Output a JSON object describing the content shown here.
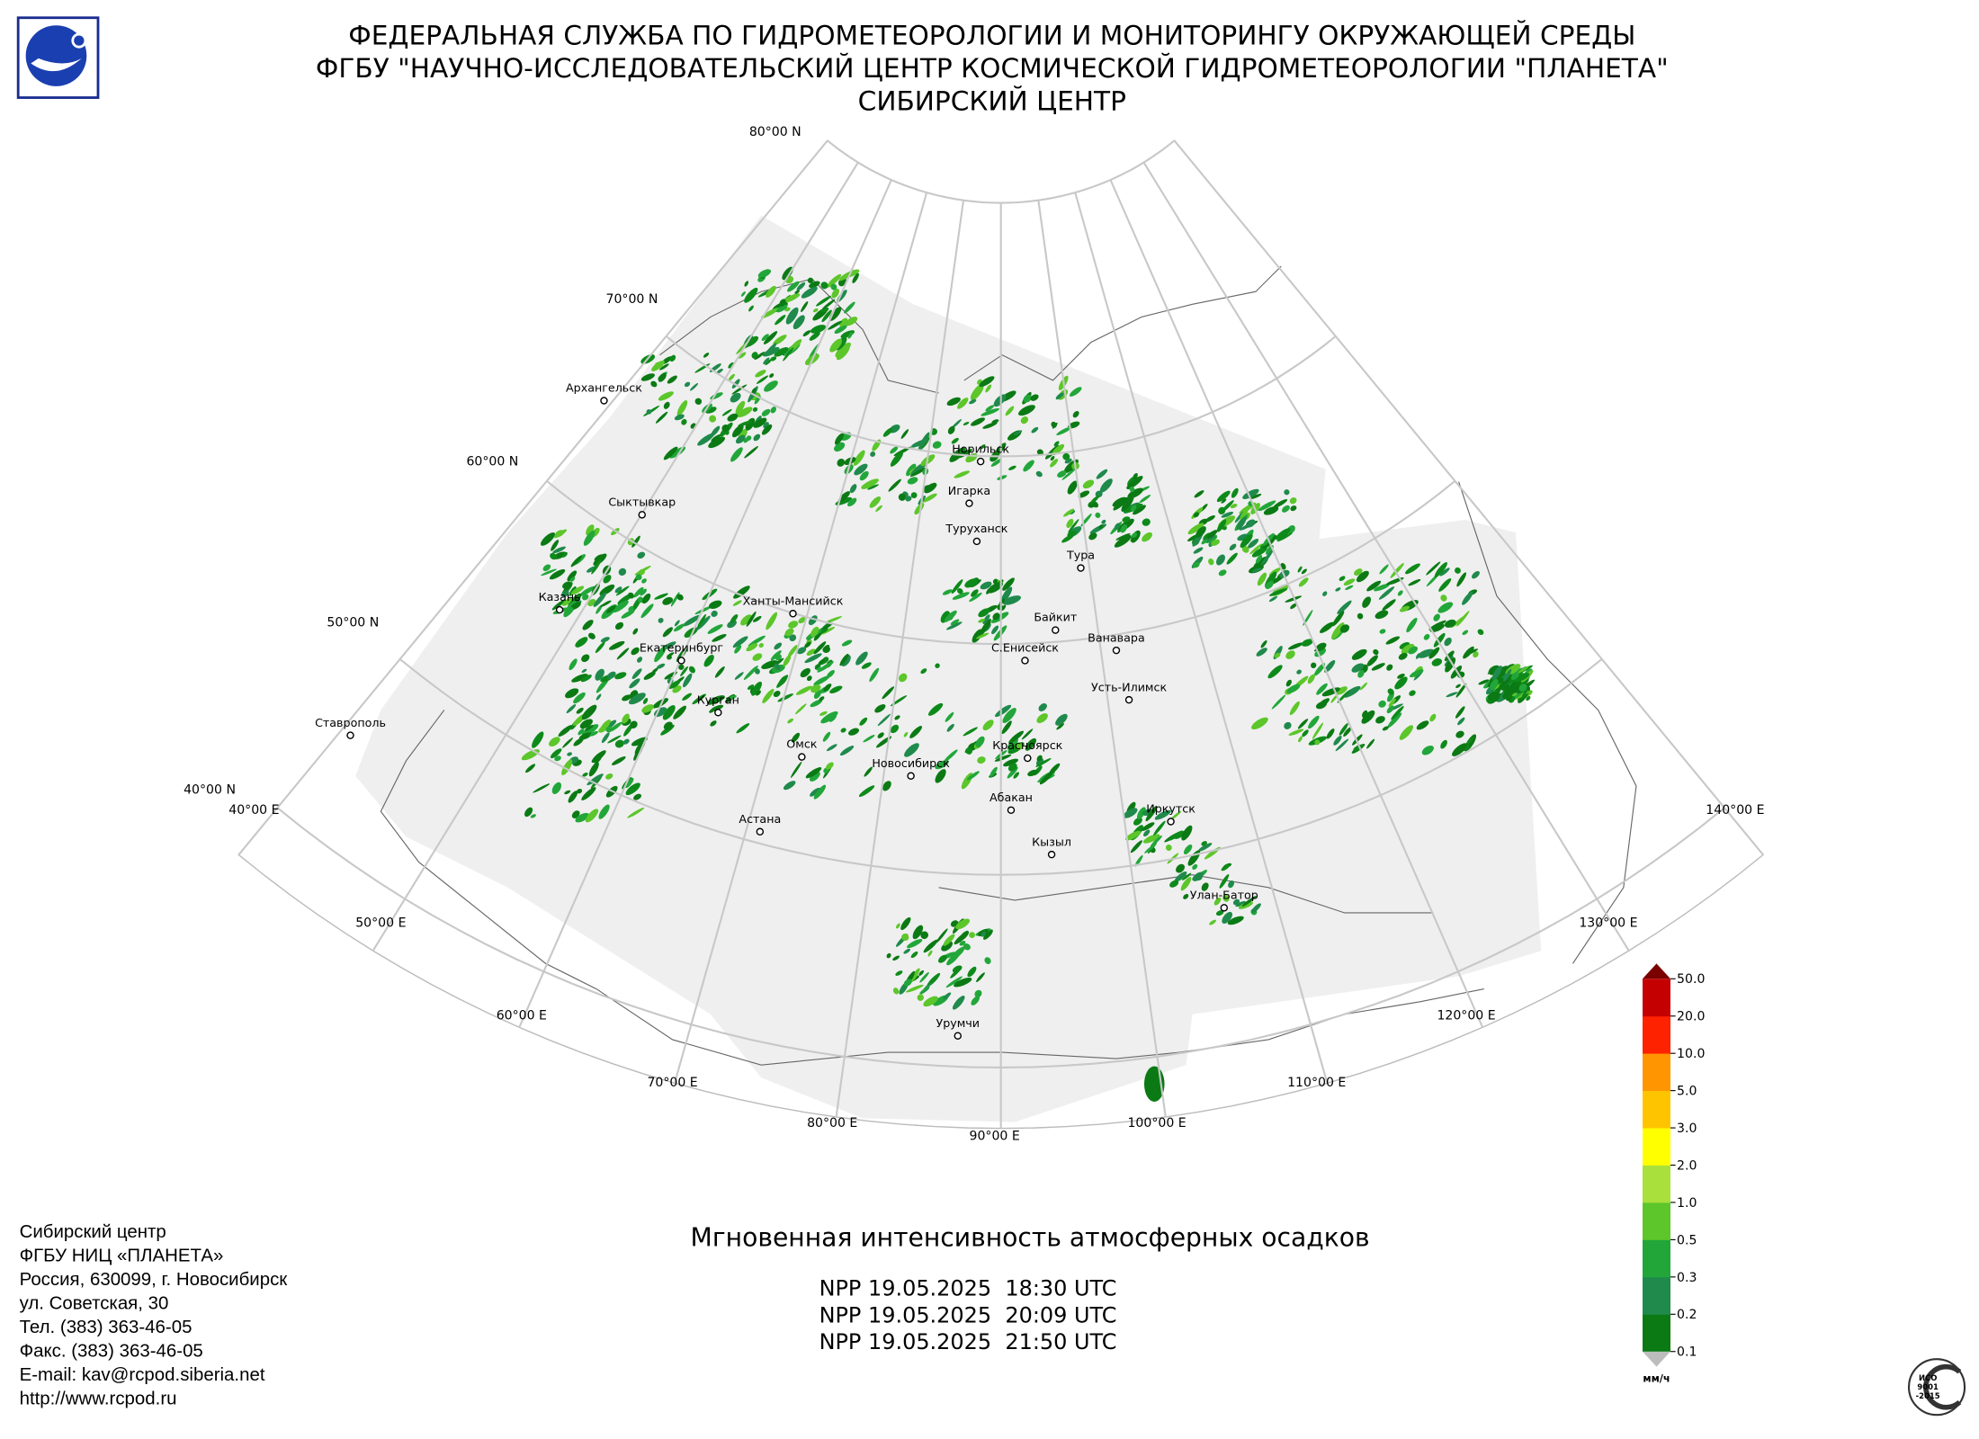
{
  "header": {
    "lines": [
      "ФЕДЕРАЛЬНАЯ СЛУЖБА ПО ГИДРОМЕТЕОРОЛОГИИ И МОНИТОРИНГУ ОКРУЖАЮЩЕЙ СРЕДЫ",
      "ФГБУ \"НАУЧНО-ИССЛЕДОВАТЕЛЬСКИЙ ЦЕНТР КОСМИЧЕСКОЙ ГИДРОМЕТЕОРОЛОГИИ \"ПЛАНЕТА\"",
      "СИБИРСКИЙ ЦЕНТР"
    ]
  },
  "map": {
    "lat_labels": [
      "80°00 N",
      "70°00 N",
      "60°00 N",
      "50°00 N",
      "40°00 N"
    ],
    "lon_labels": [
      "40°00 E",
      "50°00 E",
      "60°00 E",
      "70°00 E",
      "80°00 E",
      "90°00 E",
      "100°00 E",
      "110°00 E",
      "120°00 E",
      "130°00 E",
      "140°00 E"
    ],
    "cities": [
      "Архангельск",
      "Сыктывкар",
      "Казань",
      "Ханты-Мансийск",
      "Екатеринбург",
      "Курган",
      "Ставрополь",
      "Омск",
      "Новосибирск",
      "Астана",
      "Норильск",
      "Игарка",
      "Туруханск",
      "Тура",
      "Байкит",
      "Ванавара",
      "С.Енисейск",
      "Усть-Илимск",
      "Красноярск",
      "Абакан",
      "Иркутск",
      "Кызыл",
      "Улан-Батор",
      "Урумчи"
    ]
  },
  "legend": {
    "labels": [
      "0.1",
      "0.2",
      "0.3",
      "0.5",
      "1.0",
      "2.0",
      "3.0",
      "5.0",
      "10.0",
      "20.0",
      "50.0"
    ],
    "colors": [
      "#0b7a14",
      "#1f8a4c",
      "#22a63a",
      "#5cc62a",
      "#a9e03c",
      "#ffff00",
      "#ffc400",
      "#ff9500",
      "#ff2200",
      "#c40000"
    ],
    "over_color": "#7a0000",
    "under_color": "#bdbdbd",
    "unit": "мм/ч"
  },
  "product": {
    "title": "Мгновенная интенсивность атмосферных осадков",
    "passes": [
      "NPP 19.05.2025  18:30 UTC",
      "NPP 19.05.2025  20:09 UTC",
      "NPP 19.05.2025  21:50 UTC"
    ]
  },
  "contacts": [
    "Сибирский центр",
    "ФГБУ НИЦ «ПЛАНЕТА»",
    "Россия, 630099, г. Новосибирск",
    "ул. Советская, 30",
    "Тел. (383) 363-46-05",
    "Факс. (383) 363-46-05",
    "E-mail: kav@rcpod.siberia.net",
    "http://www.rcpod.ru"
  ],
  "iso_logo": [
    "ИСО",
    "9001",
    "-2015"
  ]
}
